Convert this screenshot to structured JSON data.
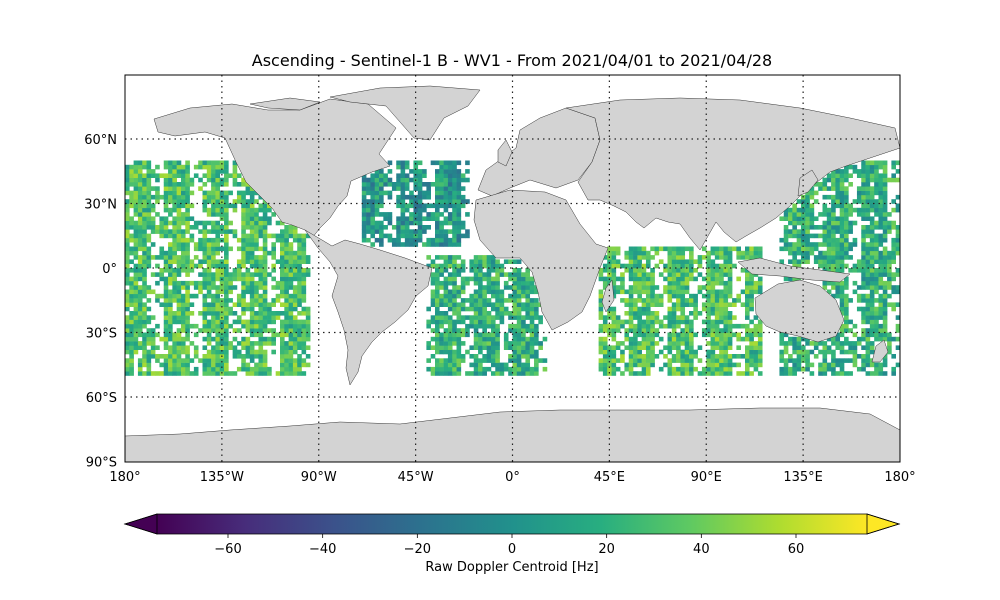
{
  "title": "Ascending - Sentinel-1 B - WV1 - From 2021/04/01 to 2021/04/28",
  "map": {
    "projection": "PlateCarree",
    "lon_range": [
      -180,
      180
    ],
    "lat_range": [
      -90,
      90
    ],
    "land_color": "#d3d3d3",
    "grid_style": "dotted",
    "lon_ticks": [
      -180,
      -135,
      -90,
      -45,
      0,
      45,
      90,
      135,
      180
    ],
    "lon_tick_labels": [
      "180°",
      "135°W",
      "90°W",
      "45°W",
      "0°",
      "45°E",
      "90°E",
      "135°E",
      "180°"
    ],
    "lat_ticks": [
      60,
      30,
      0,
      -30,
      -60,
      -90
    ],
    "lat_tick_labels": [
      "60°N",
      "30°N",
      "0°",
      "30°S",
      "60°S",
      "90°S"
    ]
  },
  "colorbar": {
    "label": "Raw Doppler Centroid [Hz]",
    "colormap": "viridis",
    "range": [
      -75,
      75
    ],
    "extend": "both",
    "ticks": [
      -60,
      -40,
      -20,
      0,
      20,
      40,
      60
    ],
    "tick_labels": [
      "−60",
      "−40",
      "−20",
      "0",
      "20",
      "40",
      "60"
    ]
  },
  "chart_data": {
    "type": "heatmap",
    "title": "Ascending - Sentinel-1 B - WV1 - From 2021/04/01 to 2021/04/28",
    "xlabel": "",
    "ylabel": "",
    "value_label": "Raw Doppler Centroid [Hz]",
    "value_range": [
      -75,
      75
    ],
    "coverage_lat": [
      -50,
      50
    ],
    "grid_resolution_deg": 2,
    "description_regions": [
      {
        "lon": [
          -180,
          -95
        ],
        "lat": [
          -50,
          50
        ],
        "typical_value": 30
      },
      {
        "lon": [
          -70,
          -20
        ],
        "lat": [
          10,
          50
        ],
        "typical_value": 5
      },
      {
        "lon": [
          -40,
          15
        ],
        "lat": [
          -50,
          5
        ],
        "typical_value": 20
      },
      {
        "lon": [
          40,
          115
        ],
        "lat": [
          -50,
          10
        ],
        "typical_value": 30
      },
      {
        "lon": [
          125,
          180
        ],
        "lat": [
          -50,
          50
        ],
        "typical_value": 20
      }
    ]
  }
}
